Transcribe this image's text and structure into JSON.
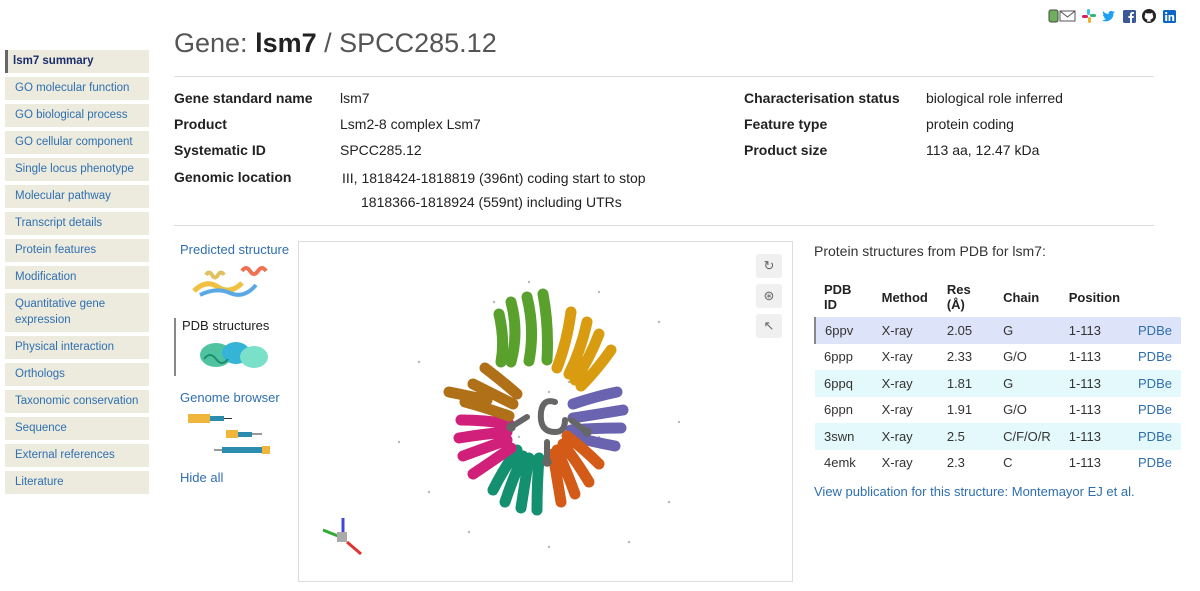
{
  "social": {
    "icons": [
      "mail-icon",
      "slack-icon",
      "twitter-icon",
      "facebook-icon",
      "github-icon",
      "linkedin-icon"
    ]
  },
  "sidebar": {
    "items": [
      {
        "label": "lsm7 summary",
        "active": true
      },
      {
        "label": "GO molecular function"
      },
      {
        "label": "GO biological process"
      },
      {
        "label": "GO cellular component"
      },
      {
        "label": "Single locus phenotype"
      },
      {
        "label": "Molecular pathway"
      },
      {
        "label": "Transcript details"
      },
      {
        "label": "Protein features"
      },
      {
        "label": "Modification"
      },
      {
        "label": "Quantitative gene expression"
      },
      {
        "label": "Physical interaction"
      },
      {
        "label": "Orthologs"
      },
      {
        "label": "Taxonomic conservation"
      },
      {
        "label": "Sequence"
      },
      {
        "label": "External references"
      },
      {
        "label": "Literature"
      }
    ]
  },
  "header": {
    "prefix": "Gene: ",
    "gene_name": "lsm7",
    "suffix": " / SPCC285.12"
  },
  "summary": {
    "gene_standard_name": {
      "label": "Gene standard name",
      "value": "lsm7"
    },
    "product": {
      "label": "Product",
      "value": "Lsm2-8 complex Lsm7"
    },
    "systematic_id": {
      "label": "Systematic ID",
      "value": "SPCC285.12"
    },
    "genomic_location": {
      "label": "Genomic location",
      "line1": "III, 1818424-1818819 (396nt) coding start to stop",
      "line2": "1818366-1818924 (559nt) including UTRs"
    },
    "characterisation_status": {
      "label": "Characterisation status",
      "value": "biological role inferred"
    },
    "feature_type": {
      "label": "Feature type",
      "value": "protein coding"
    },
    "product_size": {
      "label": "Product size",
      "value": "113 aa, 12.47 kDa"
    }
  },
  "structure_nav": {
    "predicted": "Predicted structure",
    "pdb": "PDB structures",
    "genome_browser": "Genome browser",
    "hide_all": "Hide all"
  },
  "viewer": {
    "buttons": [
      "reset-view-icon",
      "spin-icon",
      "select-cursor-icon"
    ]
  },
  "pdb": {
    "heading": "Protein structures from PDB for lsm7:",
    "columns": [
      "PDB ID",
      "Method",
      "Res (Å)",
      "Chain",
      "Position",
      ""
    ],
    "rows": [
      {
        "id": "6ppv",
        "method": "X-ray",
        "res": "2.05",
        "chain": "G",
        "position": "1-113",
        "link": "PDBe"
      },
      {
        "id": "6ppp",
        "method": "X-ray",
        "res": "2.33",
        "chain": "G/O",
        "position": "1-113",
        "link": "PDBe"
      },
      {
        "id": "6ppq",
        "method": "X-ray",
        "res": "1.81",
        "chain": "G",
        "position": "1-113",
        "link": "PDBe"
      },
      {
        "id": "6ppn",
        "method": "X-ray",
        "res": "1.91",
        "chain": "G/O",
        "position": "1-113",
        "link": "PDBe"
      },
      {
        "id": "3swn",
        "method": "X-ray",
        "res": "2.5",
        "chain": "C/F/O/R",
        "position": "1-113",
        "link": "PDBe"
      },
      {
        "id": "4emk",
        "method": "X-ray",
        "res": "2.3",
        "chain": "C",
        "position": "1-113",
        "link": "PDBe"
      }
    ],
    "publication_link": "View publication for this structure: Montemayor EJ et al."
  },
  "colors": {
    "link": "#2f6fb0",
    "sidebar_bg": "#ecebde",
    "selected_row": "#dde3f8",
    "alt_row": "#e4f9fb"
  }
}
